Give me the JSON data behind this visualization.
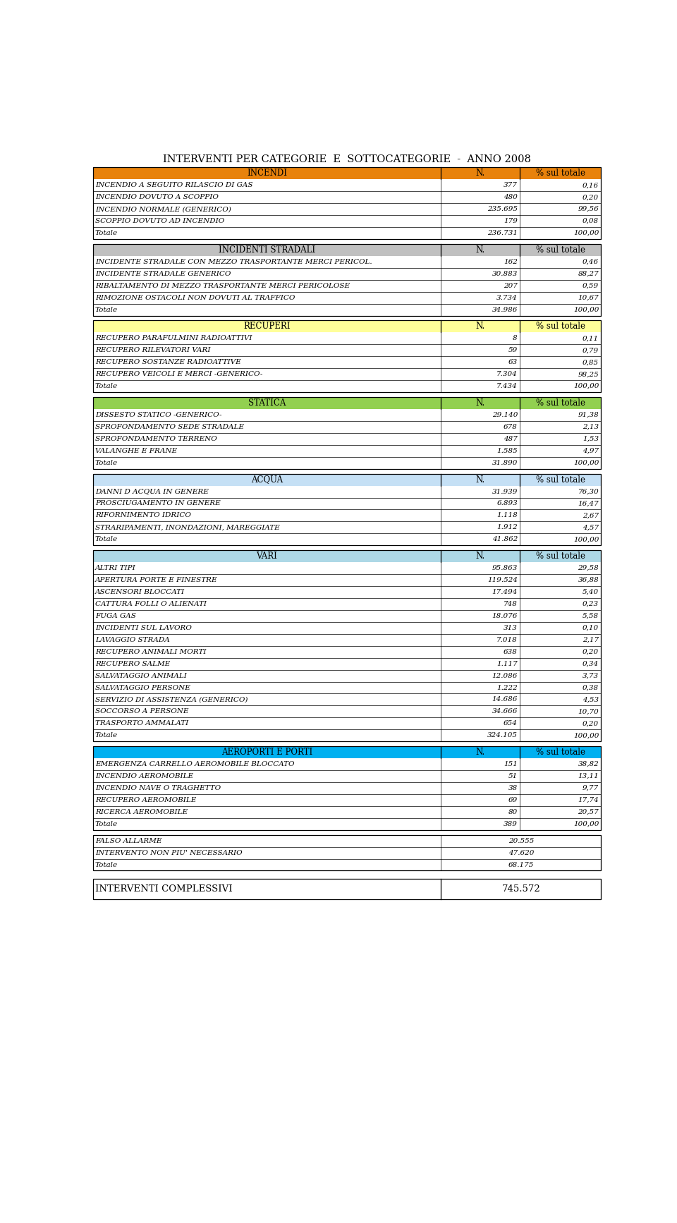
{
  "title": "INTERVENTI PER CATEGORIE  E  SOTTOCATEGORIE  -  ANNO 2008",
  "sections": [
    {
      "name": "INCENDI",
      "header_color": "#E8820C",
      "rows": [
        {
          "label": "INCENDIO A SEGUITO RILASCIO DI GAS",
          "n": "377",
          "pct": "0,16"
        },
        {
          "label": "INCENDIO DOVUTO A SCOPPIO",
          "n": "480",
          "pct": "0,20"
        },
        {
          "label": "INCENDIO NORMALE (GENERICO)",
          "n": "235.695",
          "pct": "99,56"
        },
        {
          "label": "SCOPPIO DOVUTO AD INCENDIO",
          "n": "179",
          "pct": "0,08"
        },
        {
          "label": "Totale",
          "n": "236.731",
          "pct": "100,00",
          "is_total": true
        }
      ]
    },
    {
      "name": "INCIDENTI STRADALI",
      "header_color": "#C0C0C0",
      "rows": [
        {
          "label": "INCIDENTE STRADALE CON MEZZO TRASPORTANTE MERCI PERICOL.",
          "n": "162",
          "pct": "0,46"
        },
        {
          "label": "INCIDENTE STRADALE GENERICO",
          "n": "30.883",
          "pct": "88,27"
        },
        {
          "label": "RIBALTAMENTO DI MEZZO TRASPORTANTE MERCI PERICOLOSE",
          "n": "207",
          "pct": "0,59"
        },
        {
          "label": "RIMOZIONE OSTACOLI NON DOVUTI AL TRAFFICO",
          "n": "3.734",
          "pct": "10,67"
        },
        {
          "label": "Totale",
          "n": "34.986",
          "pct": "100,00",
          "is_total": true
        }
      ]
    },
    {
      "name": "RECUPERI",
      "header_color": "#FFFF99",
      "rows": [
        {
          "label": "RECUPERO PARAFULMINI RADIOATTIVI",
          "n": "8",
          "pct": "0,11"
        },
        {
          "label": "RECUPERO RILEVATORI VARI",
          "n": "59",
          "pct": "0,79"
        },
        {
          "label": "RECUPERO SOSTANZE RADIOATTIVE",
          "n": "63",
          "pct": "0,85"
        },
        {
          "label": "RECUPERO VEICOLI E MERCI -GENERICO-",
          "n": "7.304",
          "pct": "98,25"
        },
        {
          "label": "Totale",
          "n": "7.434",
          "pct": "100,00",
          "is_total": true
        }
      ]
    },
    {
      "name": "STATICA",
      "header_color": "#92D050",
      "rows": [
        {
          "label": "DISSESTO STATICO -GENERICO-",
          "n": "29.140",
          "pct": "91,38"
        },
        {
          "label": "SPROFONDAMENTO SEDE STRADALE",
          "n": "678",
          "pct": "2,13"
        },
        {
          "label": "SPROFONDAMENTO TERRENO",
          "n": "487",
          "pct": "1,53"
        },
        {
          "label": "VALANGHE E FRANE",
          "n": "1.585",
          "pct": "4,97"
        },
        {
          "label": "Totale",
          "n": "31.890",
          "pct": "100,00",
          "is_total": true
        }
      ]
    },
    {
      "name": "ACQUA",
      "header_color": "#C5E0F5",
      "rows": [
        {
          "label": "DANNI D ACQUA IN GENERE",
          "n": "31.939",
          "pct": "76,30"
        },
        {
          "label": "PROSCIUGAMENTO IN GENERE",
          "n": "6.893",
          "pct": "16,47"
        },
        {
          "label": "RIFORNIMENTO IDRICO",
          "n": "1.118",
          "pct": "2,67"
        },
        {
          "label": "STRARIPAMENTI, INONDAZIONI, MAREGGIATE",
          "n": "1.912",
          "pct": "4,57"
        },
        {
          "label": "Totale",
          "n": "41.862",
          "pct": "100,00",
          "is_total": true
        }
      ]
    },
    {
      "name": "VARI",
      "header_color": "#ADD8E6",
      "rows": [
        {
          "label": "ALTRI TIPI",
          "n": "95.863",
          "pct": "29,58"
        },
        {
          "label": "APERTURA PORTE E FINESTRE",
          "n": "119.524",
          "pct": "36,88"
        },
        {
          "label": "ASCENSORI BLOCCATI",
          "n": "17.494",
          "pct": "5,40"
        },
        {
          "label": "CATTURA FOLLI O ALIENATI",
          "n": "748",
          "pct": "0,23"
        },
        {
          "label": "FUGA GAS",
          "n": "18.076",
          "pct": "5,58"
        },
        {
          "label": "INCIDENTI SUL LAVORO",
          "n": "313",
          "pct": "0,10"
        },
        {
          "label": "LAVAGGIO STRADA",
          "n": "7.018",
          "pct": "2,17"
        },
        {
          "label": "RECUPERO ANIMALI MORTI",
          "n": "638",
          "pct": "0,20"
        },
        {
          "label": "RECUPERO SALME",
          "n": "1.117",
          "pct": "0,34"
        },
        {
          "label": "SALVATAGGIO ANIMALI",
          "n": "12.086",
          "pct": "3,73"
        },
        {
          "label": "SALVATAGGIO PERSONE",
          "n": "1.222",
          "pct": "0,38"
        },
        {
          "label": "SERVIZIO DI ASSISTENZA (GENERICO)",
          "n": "14.686",
          "pct": "4,53"
        },
        {
          "label": "SOCCORSO A PERSONE",
          "n": "34.666",
          "pct": "10,70"
        },
        {
          "label": "TRASPORTO AMMALATI",
          "n": "654",
          "pct": "0,20"
        },
        {
          "label": "Totale",
          "n": "324.105",
          "pct": "100,00",
          "is_total": true
        }
      ]
    },
    {
      "name": "AEROPORTI E PORTI",
      "header_color": "#00B0F0",
      "rows": [
        {
          "label": "EMERGENZA CARRELLO AEROMOBILE BLOCCATO",
          "n": "151",
          "pct": "38,82"
        },
        {
          "label": "INCENDIO AEROMOBILE",
          "n": "51",
          "pct": "13,11"
        },
        {
          "label": "INCENDIO NAVE O TRAGHETTO",
          "n": "38",
          "pct": "9,77"
        },
        {
          "label": "RECUPERO AEROMOBILE",
          "n": "69",
          "pct": "17,74"
        },
        {
          "label": "RICERCA AEROMOBILE",
          "n": "80",
          "pct": "20,57"
        },
        {
          "label": "Totale",
          "n": "389",
          "pct": "100,00",
          "is_total": true
        }
      ]
    }
  ],
  "falso_section": {
    "rows": [
      {
        "label": "FALSO ALLARME",
        "n": "20.555"
      },
      {
        "label": "INTERVENTO NON PIU' NECESSARIO",
        "n": "47.620"
      },
      {
        "label": "Totale",
        "n": "68.175",
        "is_total": true
      }
    ]
  },
  "totale_complessivi": {
    "label": "INTERVENTI COMPLESSIVI",
    "n": "745.572"
  },
  "bg_color": "#FFFFFF",
  "row_font_size": 7.5,
  "header_font_size": 8.5,
  "title_font_size": 10.5
}
